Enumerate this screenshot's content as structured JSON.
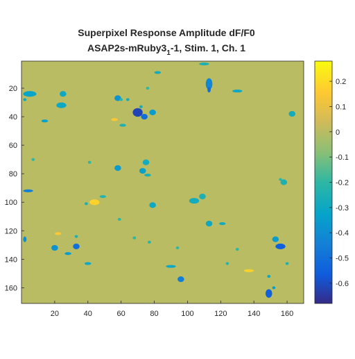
{
  "chart_data": {
    "type": "heatmap",
    "title": "Superpixel Response Amplitude dF/F0",
    "subtitle_prefix": "ASAP2s-mRuby3",
    "subtitle_subscript": "1",
    "subtitle_suffix": "-1, Stim. 1, Ch. 1",
    "xlim": [
      0,
      170
    ],
    "ylim": [
      1,
      171
    ],
    "y_reversed": true,
    "x_ticks": [
      "20",
      "40",
      "60",
      "80",
      "100",
      "120",
      "140",
      "160"
    ],
    "x_tick_values": [
      20,
      40,
      60,
      80,
      100,
      120,
      140,
      160
    ],
    "y_ticks": [
      "20",
      "40",
      "60",
      "80",
      "100",
      "120",
      "140",
      "160"
    ],
    "y_tick_values": [
      20,
      40,
      60,
      80,
      100,
      120,
      140,
      160
    ],
    "colorbar": {
      "clim": [
        -0.68,
        0.28
      ],
      "ticks": [
        "0.2",
        "0.1",
        "0",
        "-0.1",
        "-0.2",
        "-0.3",
        "-0.4",
        "-0.5",
        "-0.6"
      ],
      "tick_values": [
        0.2,
        0.1,
        0,
        -0.1,
        -0.2,
        -0.3,
        -0.4,
        -0.5,
        -0.6
      ],
      "colormap": "parula"
    },
    "background_value": 0.0,
    "grid": false,
    "blobs": [
      {
        "x": 5,
        "y": 24,
        "rx": 4,
        "ry": 2,
        "v": -0.32
      },
      {
        "x": 2,
        "y": 28,
        "rx": 1,
        "ry": 1,
        "v": -0.3
      },
      {
        "x": 25,
        "y": 24,
        "rx": 2,
        "ry": 2,
        "v": -0.3
      },
      {
        "x": 24,
        "y": 32,
        "rx": 3,
        "ry": 2,
        "v": -0.3
      },
      {
        "x": 14,
        "y": 43,
        "rx": 2,
        "ry": 1,
        "v": -0.33
      },
      {
        "x": 58,
        "y": 27,
        "rx": 2,
        "ry": 2,
        "v": -0.38
      },
      {
        "x": 64,
        "y": 28,
        "rx": 1,
        "ry": 1,
        "v": -0.28
      },
      {
        "x": 70,
        "y": 37,
        "rx": 3,
        "ry": 3,
        "v": -0.62
      },
      {
        "x": 74,
        "y": 40,
        "rx": 2,
        "ry": 2,
        "v": -0.5
      },
      {
        "x": 79,
        "y": 37,
        "rx": 2,
        "ry": 2,
        "v": -0.35
      },
      {
        "x": 56,
        "y": 42,
        "rx": 2,
        "ry": 1,
        "v": 0.15
      },
      {
        "x": 61,
        "y": 46,
        "rx": 2,
        "ry": 1,
        "v": -0.25
      },
      {
        "x": 60,
        "y": 28,
        "rx": 1,
        "ry": 1,
        "v": -0.22
      },
      {
        "x": 76,
        "y": 20,
        "rx": 1,
        "ry": 1,
        "v": -0.2
      },
      {
        "x": 72,
        "y": 33,
        "rx": 1,
        "ry": 1,
        "v": -0.28
      },
      {
        "x": 82,
        "y": 9,
        "rx": 2,
        "ry": 1,
        "v": -0.28
      },
      {
        "x": 113,
        "y": 17,
        "rx": 2,
        "ry": 4,
        "v": -0.42
      },
      {
        "x": 113,
        "y": 21,
        "rx": 1,
        "ry": 2,
        "v": -0.5
      },
      {
        "x": 110,
        "y": 3,
        "rx": 3,
        "ry": 1,
        "v": -0.25
      },
      {
        "x": 130,
        "y": 22,
        "rx": 3,
        "ry": 1,
        "v": -0.3
      },
      {
        "x": 163,
        "y": 38,
        "rx": 2,
        "ry": 2,
        "v": -0.28
      },
      {
        "x": 7,
        "y": 70,
        "rx": 1,
        "ry": 1,
        "v": -0.2
      },
      {
        "x": 58,
        "y": 76,
        "rx": 2,
        "ry": 2,
        "v": -0.35
      },
      {
        "x": 75,
        "y": 72,
        "rx": 2,
        "ry": 2,
        "v": -0.28
      },
      {
        "x": 73,
        "y": 78,
        "rx": 2,
        "ry": 2,
        "v": -0.33
      },
      {
        "x": 76,
        "y": 81,
        "rx": 2,
        "ry": 1,
        "v": -0.25
      },
      {
        "x": 41,
        "y": 72,
        "rx": 1,
        "ry": 1,
        "v": -0.2
      },
      {
        "x": 4,
        "y": 92,
        "rx": 3,
        "ry": 1,
        "v": -0.45
      },
      {
        "x": 44,
        "y": 100,
        "rx": 3,
        "ry": 2,
        "v": 0.18
      },
      {
        "x": 39,
        "y": 101,
        "rx": 1,
        "ry": 1,
        "v": -0.25
      },
      {
        "x": 49,
        "y": 96,
        "rx": 2,
        "ry": 1,
        "v": -0.22
      },
      {
        "x": 79,
        "y": 102,
        "rx": 2,
        "ry": 2,
        "v": -0.3
      },
      {
        "x": 104,
        "y": 99,
        "rx": 3,
        "ry": 2,
        "v": -0.28
      },
      {
        "x": 109,
        "y": 96,
        "rx": 2,
        "ry": 2,
        "v": -0.25
      },
      {
        "x": 113,
        "y": 115,
        "rx": 2,
        "ry": 2,
        "v": -0.3
      },
      {
        "x": 121,
        "y": 115,
        "rx": 2,
        "ry": 1,
        "v": -0.28
      },
      {
        "x": 158,
        "y": 86,
        "rx": 2,
        "ry": 2,
        "v": -0.25
      },
      {
        "x": 156,
        "y": 84,
        "rx": 1,
        "ry": 1,
        "v": -0.2
      },
      {
        "x": 22,
        "y": 122,
        "rx": 2,
        "ry": 1,
        "v": 0.15
      },
      {
        "x": 2,
        "y": 126,
        "rx": 1,
        "ry": 2,
        "v": -0.4
      },
      {
        "x": 20,
        "y": 132,
        "rx": 2,
        "ry": 2,
        "v": -0.38
      },
      {
        "x": 33,
        "y": 131,
        "rx": 2,
        "ry": 2,
        "v": -0.5
      },
      {
        "x": 28,
        "y": 136,
        "rx": 2,
        "ry": 1,
        "v": -0.35
      },
      {
        "x": 33,
        "y": 124,
        "rx": 1,
        "ry": 1,
        "v": -0.25
      },
      {
        "x": 40,
        "y": 143,
        "rx": 2,
        "ry": 1,
        "v": -0.3
      },
      {
        "x": 77,
        "y": 128,
        "rx": 1,
        "ry": 1,
        "v": -0.22
      },
      {
        "x": 68,
        "y": 125,
        "rx": 1,
        "ry": 1,
        "v": -0.2
      },
      {
        "x": 153,
        "y": 126,
        "rx": 2,
        "ry": 2,
        "v": -0.35
      },
      {
        "x": 156,
        "y": 131,
        "rx": 3,
        "ry": 2,
        "v": -0.55
      },
      {
        "x": 94,
        "y": 132,
        "rx": 1,
        "ry": 1,
        "v": -0.2
      },
      {
        "x": 90,
        "y": 145,
        "rx": 3,
        "ry": 1,
        "v": -0.3
      },
      {
        "x": 96,
        "y": 154,
        "rx": 2,
        "ry": 2,
        "v": -0.45
      },
      {
        "x": 137,
        "y": 148,
        "rx": 3,
        "ry": 1,
        "v": 0.18
      },
      {
        "x": 149,
        "y": 152,
        "rx": 1,
        "ry": 1,
        "v": -0.3
      },
      {
        "x": 149,
        "y": 164,
        "rx": 2,
        "ry": 3,
        "v": -0.55
      },
      {
        "x": 152,
        "y": 160,
        "rx": 1,
        "ry": 1,
        "v": -0.35
      },
      {
        "x": 160,
        "y": 143,
        "rx": 1,
        "ry": 1,
        "v": -0.25
      },
      {
        "x": 130,
        "y": 133,
        "rx": 1,
        "ry": 1,
        "v": -0.2
      },
      {
        "x": 124,
        "y": 143,
        "rx": 1,
        "ry": 1,
        "v": -0.22
      },
      {
        "x": 59,
        "y": 112,
        "rx": 1,
        "ry": 1,
        "v": -0.2
      }
    ]
  }
}
